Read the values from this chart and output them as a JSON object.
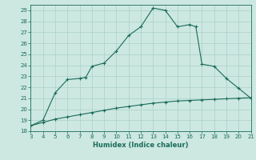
{
  "xlabel": "Humidex (Indice chaleur)",
  "ylabel": "",
  "xlim": [
    3,
    21
  ],
  "ylim": [
    18,
    29.5
  ],
  "xticks": [
    3,
    4,
    5,
    6,
    7,
    8,
    9,
    10,
    11,
    12,
    13,
    14,
    15,
    16,
    17,
    18,
    19,
    20,
    21
  ],
  "yticks": [
    18,
    19,
    20,
    21,
    22,
    23,
    24,
    25,
    26,
    27,
    28,
    29
  ],
  "bg_color": "#cce8e0",
  "line_color": "#1a6b5a",
  "grid_color": "#aad0c8",
  "curve1_x": [
    3,
    4,
    5,
    6,
    7,
    7.5,
    8,
    9,
    10,
    11,
    12,
    13,
    14,
    15,
    16,
    16.5,
    17,
    18,
    19,
    20,
    21
  ],
  "curve1_y": [
    18.5,
    19.0,
    21.5,
    22.7,
    22.8,
    22.9,
    23.9,
    24.2,
    25.3,
    26.7,
    27.5,
    29.2,
    29.0,
    27.5,
    27.7,
    27.5,
    24.1,
    23.9,
    22.8,
    21.9,
    21.0
  ],
  "curve2_x": [
    3,
    4,
    5,
    6,
    7,
    8,
    9,
    10,
    11,
    12,
    13,
    14,
    15,
    16,
    17,
    18,
    19,
    20,
    21
  ],
  "curve2_y": [
    18.5,
    18.8,
    19.1,
    19.3,
    19.5,
    19.7,
    19.9,
    20.1,
    20.25,
    20.4,
    20.55,
    20.65,
    20.75,
    20.8,
    20.85,
    20.9,
    20.95,
    21.0,
    21.05
  ]
}
